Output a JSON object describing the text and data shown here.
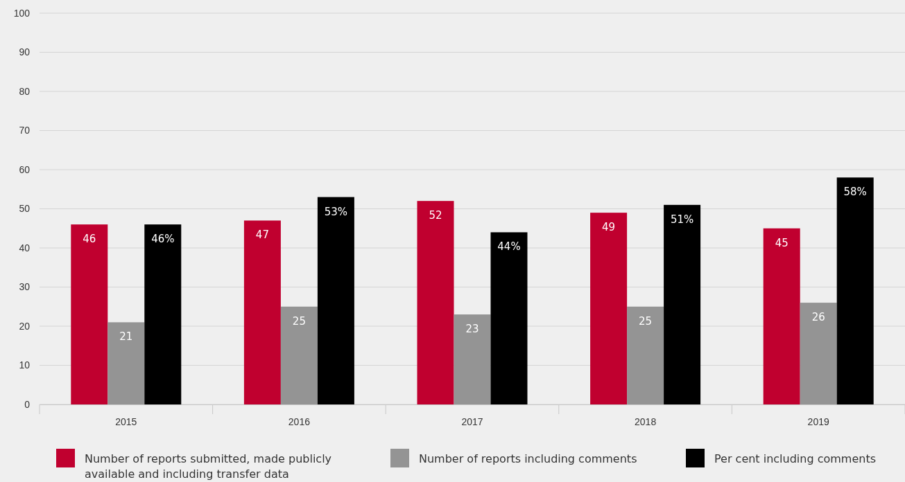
{
  "chart_data": {
    "type": "bar",
    "categories": [
      "2015",
      "2016",
      "2017",
      "2018",
      "2019"
    ],
    "series": [
      {
        "name": "Number of reports submitted, made publicly available and including transfer data",
        "color": "#c0002f",
        "values": [
          46,
          47,
          52,
          49,
          45
        ],
        "value_labels": [
          "46",
          "47",
          "52",
          "49",
          "45"
        ]
      },
      {
        "name": "Number of reports including comments",
        "color": "#949494",
        "values": [
          21,
          25,
          23,
          25,
          26
        ],
        "value_labels": [
          "21",
          "25",
          "23",
          "25",
          "26"
        ]
      },
      {
        "name": "Per cent including comments",
        "color": "#000000",
        "values": [
          46,
          53,
          44,
          51,
          58
        ],
        "value_labels": [
          "46%",
          "53%",
          "44%",
          "51%",
          "58%"
        ]
      }
    ],
    "ylim": [
      0,
      100
    ],
    "yticks": [
      0,
      10,
      20,
      30,
      40,
      50,
      60,
      70,
      80,
      90,
      100
    ],
    "grid": "y",
    "legend": "bottom"
  }
}
